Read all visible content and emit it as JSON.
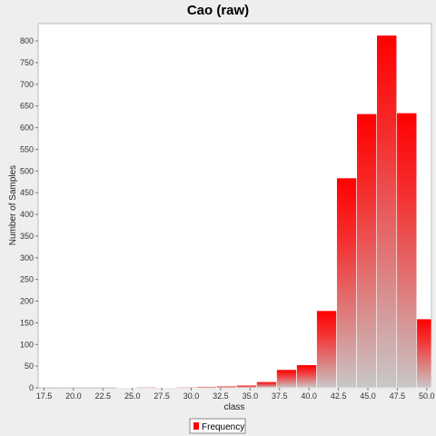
{
  "chart_data": {
    "type": "bar",
    "title": "Cao (raw)",
    "xlabel": "class",
    "ylabel": "Number of Samples",
    "xlim": [
      17,
      50.4
    ],
    "ylim": [
      0,
      840
    ],
    "xticks": [
      "17.5",
      "20.0",
      "22.5",
      "25.0",
      "27.5",
      "30.0",
      "32.5",
      "35.0",
      "37.5",
      "40.0",
      "42.5",
      "45.0",
      "47.5",
      "50.0"
    ],
    "yticks": [
      "0",
      "50",
      "100",
      "150",
      "200",
      "250",
      "300",
      "350",
      "400",
      "450",
      "500",
      "550",
      "600",
      "650",
      "700",
      "750",
      "800"
    ],
    "bin_width": 1.7,
    "series": [
      {
        "name": "Frequency",
        "color": "#ff0000",
        "bins": [
          {
            "x": 24.5,
            "y": 1
          },
          {
            "x": 26.2,
            "y": 2
          },
          {
            "x": 27.9,
            "y": 1
          },
          {
            "x": 29.6,
            "y": 2
          },
          {
            "x": 31.3,
            "y": 3
          },
          {
            "x": 33.0,
            "y": 4
          },
          {
            "x": 34.7,
            "y": 6
          },
          {
            "x": 36.4,
            "y": 14
          },
          {
            "x": 38.1,
            "y": 42
          },
          {
            "x": 39.8,
            "y": 53
          },
          {
            "x": 41.5,
            "y": 178
          },
          {
            "x": 43.2,
            "y": 484
          },
          {
            "x": 44.9,
            "y": 632
          },
          {
            "x": 46.6,
            "y": 813
          },
          {
            "x": 48.3,
            "y": 634
          },
          {
            "x": 50.0,
            "y": 159
          }
        ]
      }
    ],
    "grid": false,
    "legend_position": "bottom-center"
  }
}
